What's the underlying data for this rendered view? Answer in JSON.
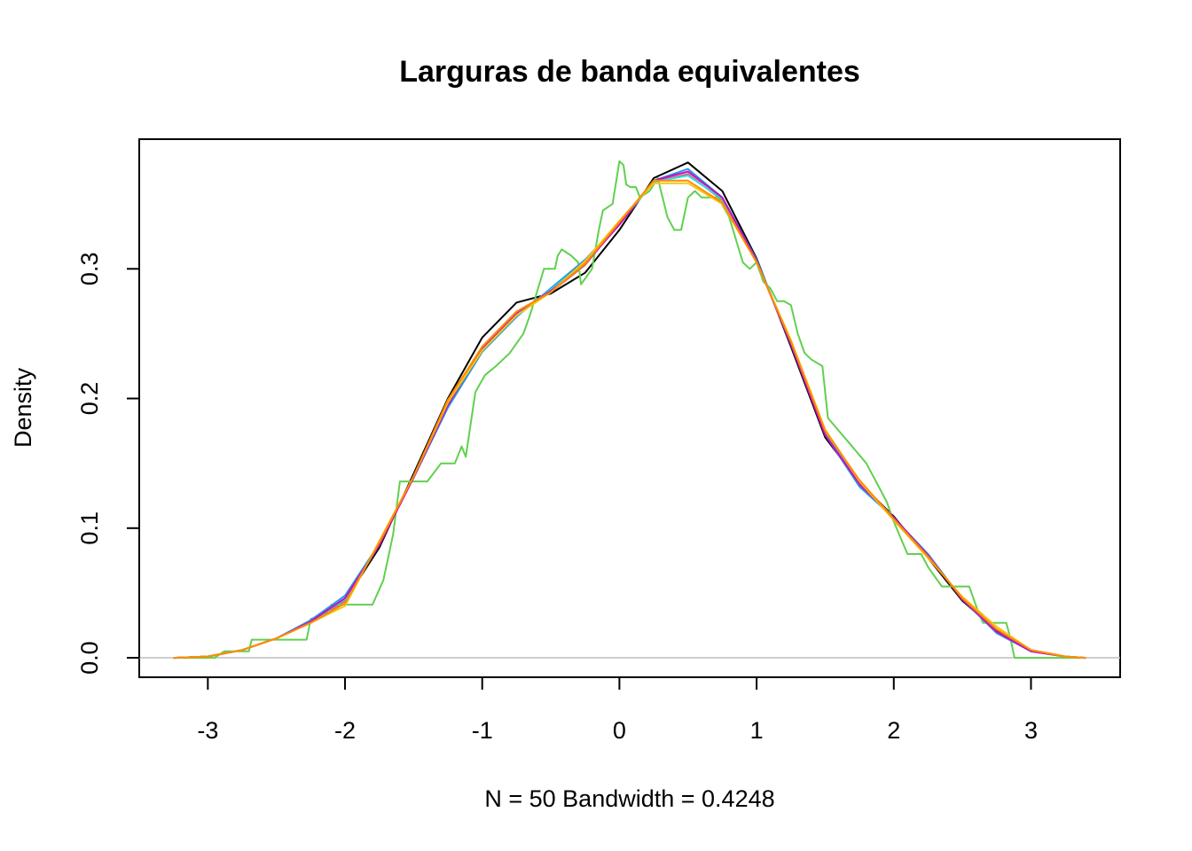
{
  "chart_data": {
    "type": "line",
    "title": "Larguras de banda equivalentes",
    "xlabel": "N = 50   Bandwidth = 0.4248",
    "ylabel": "Density",
    "xlim": [
      -3.5,
      3.65
    ],
    "ylim": [
      -0.015,
      0.4
    ],
    "xticks": [
      -3,
      -2,
      -1,
      0,
      1,
      2,
      3
    ],
    "xtick_labels": [
      "-3",
      "-2",
      "-1",
      "0",
      "1",
      "2",
      "3"
    ],
    "yticks": [
      0.0,
      0.1,
      0.2,
      0.3
    ],
    "ytick_labels": [
      "0.0",
      "0.1",
      "0.2",
      "0.3"
    ],
    "baseline": 0,
    "grid": false,
    "legend": "none",
    "series": [
      {
        "color": "#000000",
        "x": [
          -3.25,
          -3.0,
          -2.75,
          -2.5,
          -2.25,
          -2.0,
          -1.75,
          -1.5,
          -1.25,
          -1.0,
          -0.75,
          -0.5,
          -0.25,
          0.0,
          0.25,
          0.5,
          0.75,
          1.0,
          1.25,
          1.5,
          1.75,
          2.0,
          2.25,
          2.5,
          2.75,
          3.0,
          3.25,
          3.4
        ],
        "y": [
          0.0,
          0.001,
          0.006,
          0.015,
          0.028,
          0.044,
          0.085,
          0.142,
          0.2,
          0.247,
          0.274,
          0.281,
          0.297,
          0.33,
          0.37,
          0.382,
          0.36,
          0.308,
          0.24,
          0.17,
          0.135,
          0.109,
          0.077,
          0.044,
          0.021,
          0.006,
          0.001,
          0.0
        ]
      },
      {
        "color": "#DF536B",
        "x": [
          -3.25,
          -3.0,
          -2.75,
          -2.5,
          -2.25,
          -2.0,
          -1.75,
          -1.5,
          -1.25,
          -1.0,
          -0.75,
          -0.5,
          -0.25,
          0.0,
          0.25,
          0.5,
          0.75,
          1.0,
          1.25,
          1.5,
          1.75,
          2.0,
          2.25,
          2.5,
          2.75,
          3.0,
          3.25,
          3.4
        ],
        "y": [
          0.0,
          0.001,
          0.006,
          0.015,
          0.027,
          0.044,
          0.088,
          0.14,
          0.198,
          0.24,
          0.267,
          0.282,
          0.303,
          0.335,
          0.367,
          0.373,
          0.353,
          0.305,
          0.243,
          0.173,
          0.136,
          0.108,
          0.079,
          0.045,
          0.02,
          0.005,
          0.001,
          0.0
        ]
      },
      {
        "color": "#61D04F",
        "x": [
          -3.25,
          -2.95,
          -2.88,
          -2.7,
          -2.68,
          -2.5,
          -2.28,
          -2.25,
          -2.12,
          -2.1,
          -1.8,
          -1.72,
          -1.65,
          -1.6,
          -1.4,
          -1.3,
          -1.2,
          -1.15,
          -1.12,
          -1.05,
          -0.98,
          -0.9,
          -0.8,
          -0.7,
          -0.65,
          -0.55,
          -0.47,
          -0.45,
          -0.42,
          -0.35,
          -0.3,
          -0.28,
          -0.2,
          -0.15,
          -0.12,
          -0.05,
          0.0,
          0.03,
          0.05,
          0.08,
          0.12,
          0.15,
          0.22,
          0.28,
          0.35,
          0.4,
          0.42,
          0.45,
          0.5,
          0.55,
          0.6,
          0.65,
          0.72,
          0.8,
          0.9,
          0.95,
          1.0,
          1.05,
          1.1,
          1.15,
          1.2,
          1.25,
          1.3,
          1.35,
          1.4,
          1.48,
          1.52,
          1.6,
          1.68,
          1.72,
          1.8,
          1.9,
          1.95,
          2.0,
          2.1,
          2.2,
          2.25,
          2.35,
          2.42,
          2.55,
          2.6,
          2.65,
          2.75,
          2.82,
          2.85,
          2.88,
          3.1,
          3.4
        ],
        "y": [
          0.0,
          0.0,
          0.005,
          0.005,
          0.014,
          0.014,
          0.014,
          0.03,
          0.034,
          0.041,
          0.041,
          0.06,
          0.095,
          0.136,
          0.136,
          0.15,
          0.15,
          0.163,
          0.155,
          0.205,
          0.218,
          0.225,
          0.235,
          0.25,
          0.265,
          0.3,
          0.3,
          0.31,
          0.315,
          0.31,
          0.305,
          0.288,
          0.3,
          0.33,
          0.345,
          0.35,
          0.383,
          0.38,
          0.365,
          0.363,
          0.363,
          0.355,
          0.36,
          0.37,
          0.34,
          0.33,
          0.33,
          0.33,
          0.355,
          0.36,
          0.355,
          0.355,
          0.355,
          0.34,
          0.305,
          0.3,
          0.305,
          0.29,
          0.285,
          0.275,
          0.275,
          0.272,
          0.25,
          0.235,
          0.23,
          0.225,
          0.185,
          0.175,
          0.165,
          0.16,
          0.15,
          0.13,
          0.12,
          0.105,
          0.08,
          0.08,
          0.07,
          0.055,
          0.055,
          0.055,
          0.04,
          0.027,
          0.027,
          0.027,
          0.015,
          0.0,
          0.0,
          0.0
        ]
      },
      {
        "color": "#2297E6",
        "x": [
          -3.25,
          -3.0,
          -2.75,
          -2.5,
          -2.25,
          -2.0,
          -1.75,
          -1.5,
          -1.25,
          -1.0,
          -0.75,
          -0.5,
          -0.25,
          0.0,
          0.25,
          0.5,
          0.75,
          1.0,
          1.25,
          1.5,
          1.75,
          2.0,
          2.25,
          2.5,
          2.75,
          3.0,
          3.25,
          3.4
        ],
        "y": [
          0.0,
          0.001,
          0.006,
          0.015,
          0.029,
          0.048,
          0.088,
          0.139,
          0.193,
          0.236,
          0.263,
          0.285,
          0.307,
          0.335,
          0.368,
          0.377,
          0.355,
          0.307,
          0.242,
          0.172,
          0.132,
          0.108,
          0.08,
          0.045,
          0.019,
          0.005,
          0.001,
          0.0
        ]
      },
      {
        "color": "#28E2E5",
        "x": [
          -3.25,
          -3.0,
          -2.75,
          -2.5,
          -2.25,
          -2.0,
          -1.75,
          -1.5,
          -1.25,
          -1.0,
          -0.75,
          -0.5,
          -0.25,
          0.0,
          0.25,
          0.5,
          0.75,
          1.0,
          1.25,
          1.5,
          1.75,
          2.0,
          2.25,
          2.5,
          2.75,
          3.0,
          3.25,
          3.4
        ],
        "y": [
          0.0,
          0.001,
          0.006,
          0.015,
          0.028,
          0.045,
          0.087,
          0.14,
          0.196,
          0.238,
          0.265,
          0.284,
          0.305,
          0.334,
          0.367,
          0.372,
          0.354,
          0.306,
          0.242,
          0.173,
          0.134,
          0.108,
          0.079,
          0.045,
          0.02,
          0.005,
          0.001,
          0.0
        ]
      },
      {
        "color": "#CD0BBC",
        "x": [
          -3.25,
          -3.0,
          -2.75,
          -2.5,
          -2.25,
          -2.0,
          -1.75,
          -1.5,
          -1.25,
          -1.0,
          -0.75,
          -0.5,
          -0.25,
          0.0,
          0.25,
          0.5,
          0.75,
          1.0,
          1.25,
          1.5,
          1.75,
          2.0,
          2.25,
          2.5,
          2.75,
          3.0,
          3.25,
          3.4
        ],
        "y": [
          0.0,
          0.001,
          0.006,
          0.015,
          0.028,
          0.046,
          0.087,
          0.139,
          0.195,
          0.239,
          0.266,
          0.283,
          0.304,
          0.334,
          0.368,
          0.375,
          0.355,
          0.306,
          0.242,
          0.172,
          0.134,
          0.108,
          0.079,
          0.045,
          0.02,
          0.005,
          0.001,
          0.0
        ]
      },
      {
        "color": "#F5C710",
        "x": [
          -3.25,
          -3.0,
          -2.75,
          -2.5,
          -2.25,
          -2.0,
          -1.75,
          -1.5,
          -1.25,
          -1.0,
          -0.75,
          -0.5,
          -0.25,
          0.0,
          0.25,
          0.5,
          0.75,
          1.0,
          1.25,
          1.5,
          1.75,
          2.0,
          2.25,
          2.5,
          2.75,
          3.0,
          3.25,
          3.4
        ],
        "y": [
          0.0,
          0.001,
          0.006,
          0.015,
          0.027,
          0.04,
          0.09,
          0.14,
          0.197,
          0.237,
          0.264,
          0.282,
          0.306,
          0.337,
          0.366,
          0.366,
          0.35,
          0.305,
          0.245,
          0.176,
          0.136,
          0.106,
          0.077,
          0.047,
          0.024,
          0.006,
          0.001,
          0.0
        ]
      },
      {
        "color": "#FF8C00",
        "x": [
          -3.25,
          -3.0,
          -2.75,
          -2.5,
          -2.25,
          -2.0,
          -1.75,
          -1.5,
          -1.25,
          -1.0,
          -0.75,
          -0.5,
          -0.25,
          0.0,
          0.25,
          0.5,
          0.75,
          1.0,
          1.25,
          1.5,
          1.75,
          2.0,
          2.25,
          2.5,
          2.75,
          3.0,
          3.25,
          3.4
        ],
        "y": [
          0.0,
          0.001,
          0.006,
          0.015,
          0.027,
          0.042,
          0.089,
          0.14,
          0.199,
          0.24,
          0.267,
          0.282,
          0.304,
          0.336,
          0.368,
          0.368,
          0.351,
          0.305,
          0.244,
          0.175,
          0.137,
          0.107,
          0.078,
          0.046,
          0.022,
          0.006,
          0.001,
          0.0
        ]
      }
    ]
  }
}
